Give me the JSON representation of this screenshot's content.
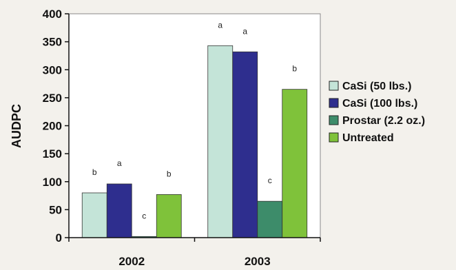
{
  "chart_data": {
    "type": "bar",
    "title": "",
    "xlabel": "",
    "ylabel": "AUDPC",
    "ylim": [
      0,
      400
    ],
    "yticks": [
      0,
      50,
      100,
      150,
      200,
      250,
      300,
      350,
      400
    ],
    "categories": [
      "2002",
      "2003"
    ],
    "grid": false,
    "legend_position": "right",
    "series": [
      {
        "name": "CaSi (50 lbs.)",
        "color": "#c4e4d8",
        "values": [
          80,
          343
        ],
        "letters": [
          "b",
          "a"
        ]
      },
      {
        "name": "CaSi (100 lbs.)",
        "color": "#2e2e8e",
        "values": [
          96,
          332
        ],
        "letters": [
          "a",
          "a"
        ]
      },
      {
        "name": "Prostar (2.2 oz.)",
        "color": "#3d8c6a",
        "values": [
          2,
          65
        ],
        "letters": [
          "c",
          "c"
        ]
      },
      {
        "name": "Untreated",
        "color": "#7fc23a",
        "values": [
          77,
          265
        ],
        "letters": [
          "b",
          "b"
        ]
      }
    ]
  }
}
